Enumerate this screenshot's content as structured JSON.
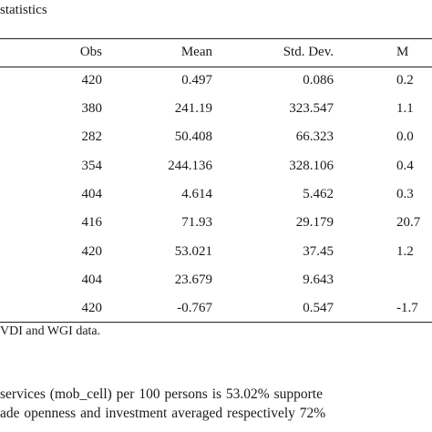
{
  "table": {
    "caption": "statistics",
    "headers": {
      "obs": "Obs",
      "mean": "Mean",
      "sd": "Std. Dev.",
      "min": "M"
    },
    "rows": [
      {
        "obs": "420",
        "mean": "0.497",
        "sd": "0.086",
        "min": "0.2"
      },
      {
        "obs": "380",
        "mean": "241.19",
        "sd": "323.547",
        "min": "1.1"
      },
      {
        "obs": "282",
        "mean": "50.408",
        "sd": "66.323",
        "min": "0.0"
      },
      {
        "obs": "354",
        "mean": "244.136",
        "sd": "328.106",
        "min": "0.4"
      },
      {
        "obs": "404",
        "mean": "4.614",
        "sd": "5.462",
        "min": "0.3"
      },
      {
        "obs": "416",
        "mean": "71.93",
        "sd": "29.179",
        "min": "20.7"
      },
      {
        "obs": "420",
        "mean": "53.021",
        "sd": "37.45",
        "min": "1.2"
      },
      {
        "obs": "404",
        "mean": "23.679",
        "sd": "9.643",
        "min": ""
      },
      {
        "obs": "420",
        "mean": "-0.767",
        "sd": "0.547",
        "min": "-1.7"
      }
    ],
    "note": "VDI and WGI data."
  },
  "paragraph": {
    "line1": "services (mob_cell) per 100 persons is 53.02% supporte",
    "line2": "ade openness and investment averaged respectively 72%"
  }
}
